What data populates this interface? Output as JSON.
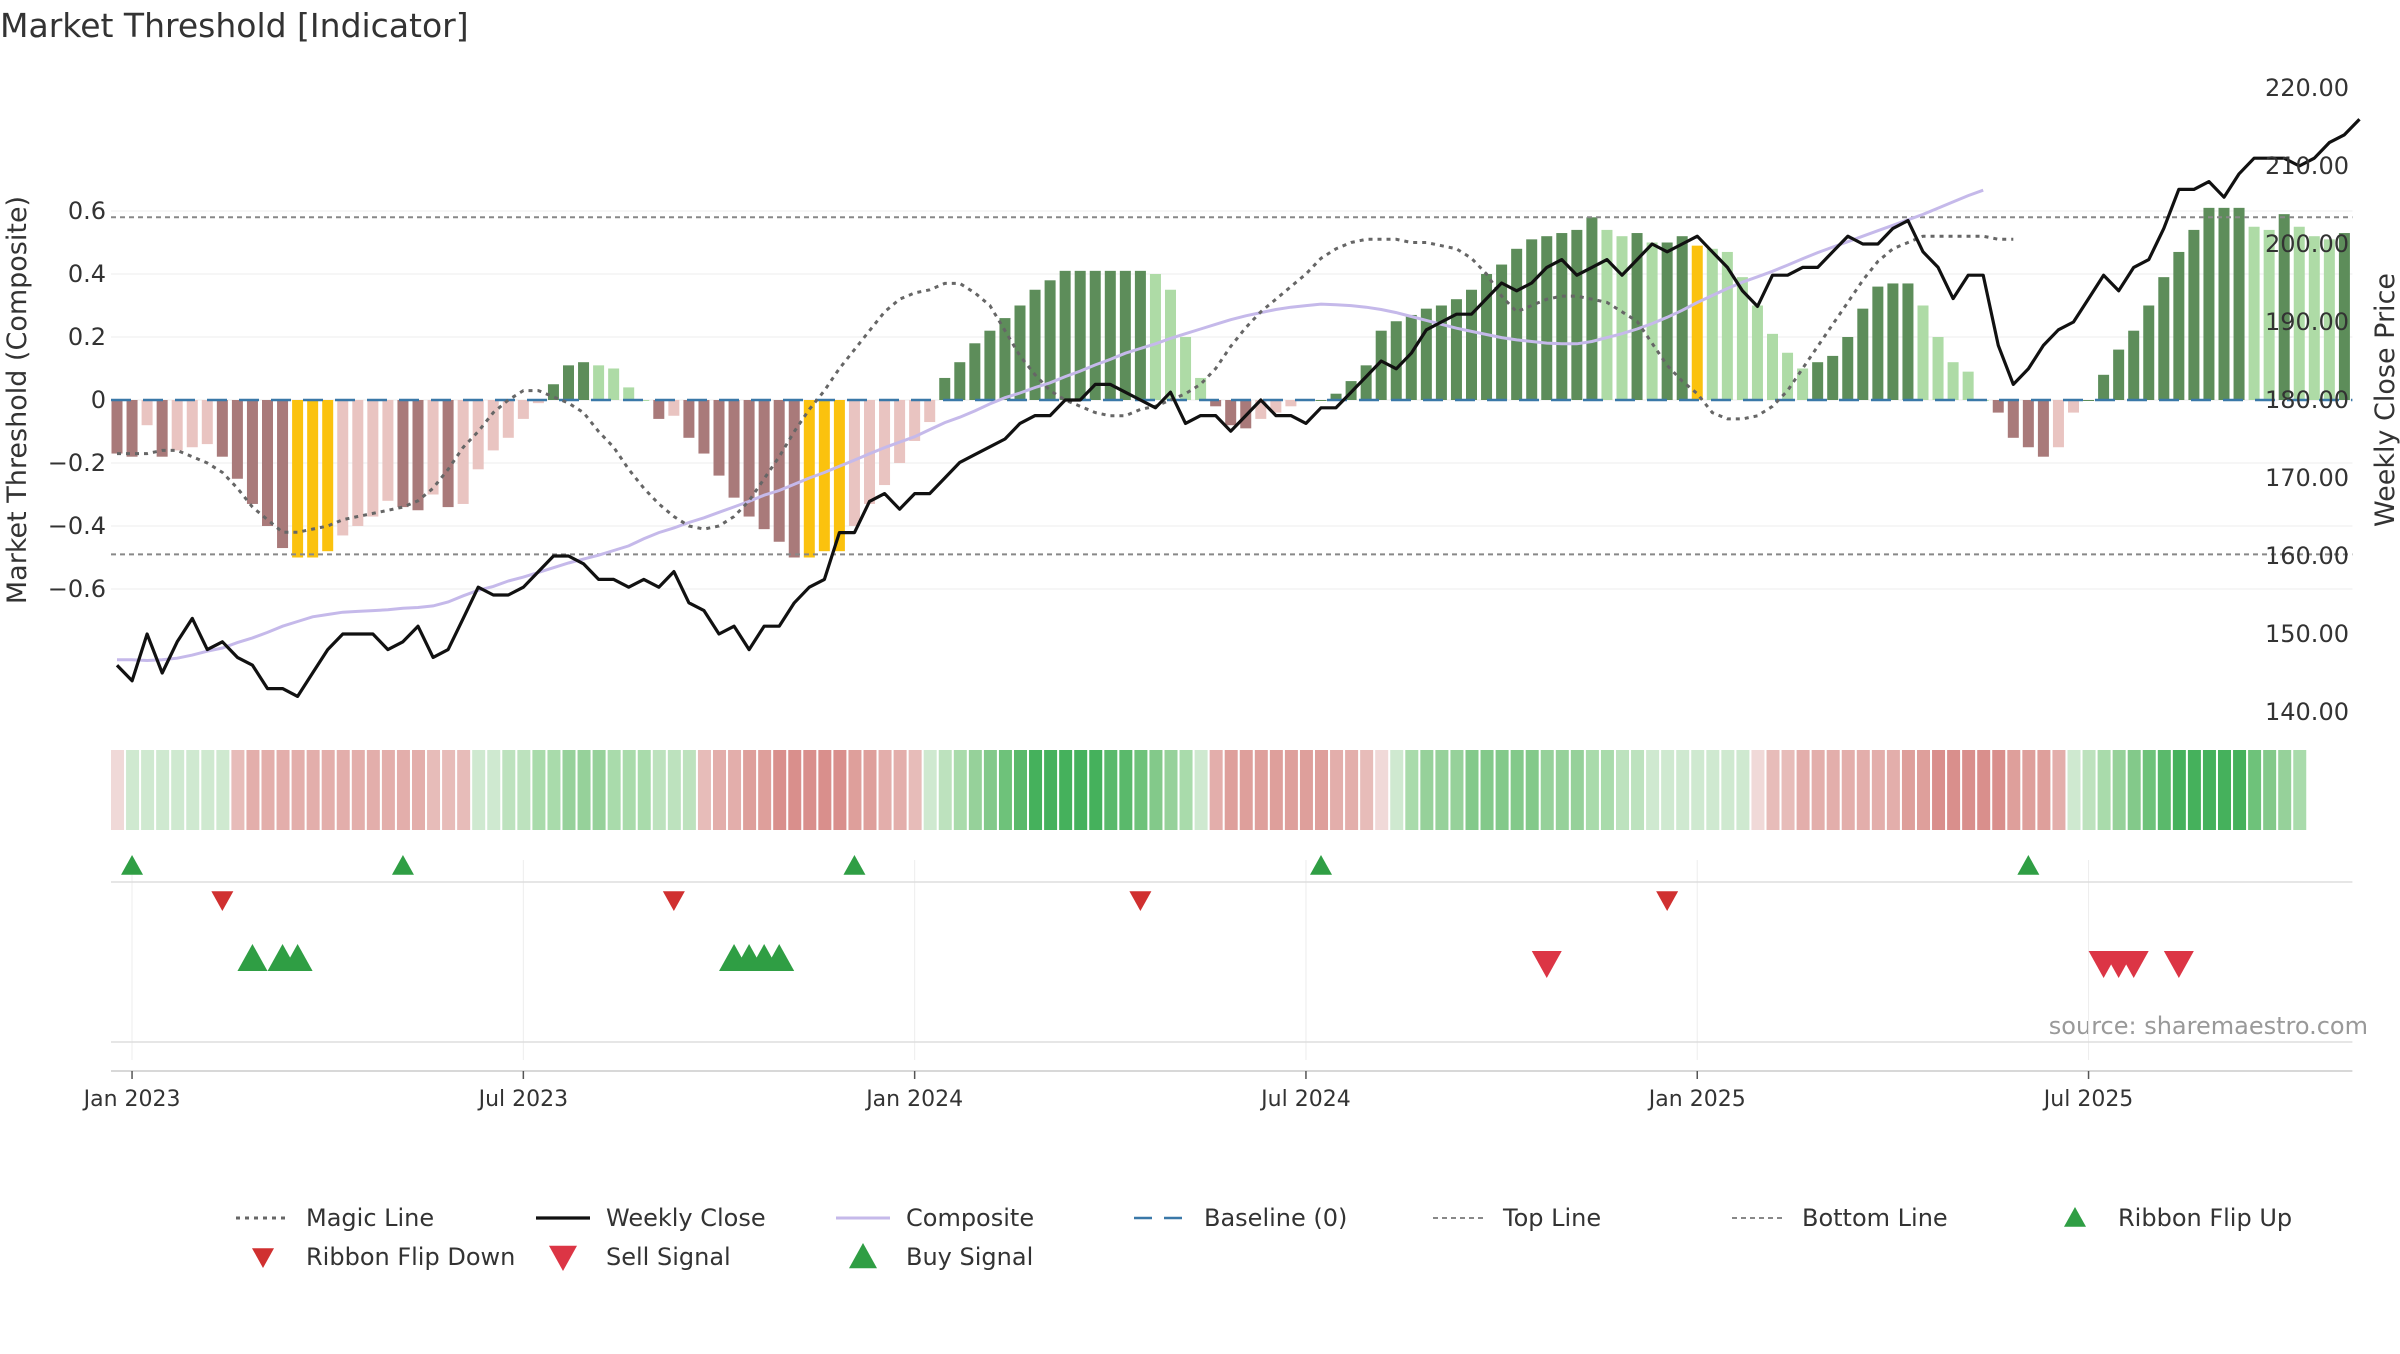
{
  "chart_data": {
    "type": "bar",
    "title": "Market Threshold [Indicator]",
    "ylabel": "Market Threshold (Composite)",
    "y2label": "Weekly Close Price",
    "source": "source: sharemaestro.com",
    "ylim": [
      -0.68,
      0.7
    ],
    "y2lim": [
      135,
      220
    ],
    "yticks": [
      {
        "v": 0.6,
        "label": "0.6"
      },
      {
        "v": 0.4,
        "label": "0.4"
      },
      {
        "v": 0.2,
        "label": "0.2"
      },
      {
        "v": 0,
        "label": "0"
      },
      {
        "v": -0.2,
        "label": "−0.2"
      },
      {
        "v": -0.4,
        "label": "−0.4"
      },
      {
        "v": -0.6,
        "label": "−0.6"
      }
    ],
    "y2ticks": [
      {
        "v": 220,
        "label": "220.00"
      },
      {
        "v": 210,
        "label": "210.00"
      },
      {
        "v": 200,
        "label": "200.00"
      },
      {
        "v": 190,
        "label": "190.00"
      },
      {
        "v": 180,
        "label": "180.00"
      },
      {
        "v": 170,
        "label": "170.00"
      },
      {
        "v": 160,
        "label": "160.00"
      },
      {
        "v": 150,
        "label": "150.00"
      },
      {
        "v": 140,
        "label": "140.00"
      }
    ],
    "xticks": [
      {
        "w": 1,
        "label": "Jan 2023"
      },
      {
        "w": 27,
        "label": "Jul 2023"
      },
      {
        "w": 53,
        "label": "Jan 2024"
      },
      {
        "w": 79,
        "label": "Jul 2024"
      },
      {
        "w": 105,
        "label": "Jan 2025"
      },
      {
        "w": 131,
        "label": "Jul 2025"
      }
    ],
    "top_line": 0.58,
    "bottom_line": -0.49,
    "baseline": 0,
    "composite": [
      -0.17,
      -0.18,
      -0.08,
      -0.18,
      -0.16,
      -0.15,
      -0.14,
      -0.18,
      -0.25,
      -0.33,
      -0.4,
      -0.47,
      -0.5,
      -0.5,
      -0.48,
      -0.43,
      -0.4,
      -0.37,
      -0.32,
      -0.34,
      -0.35,
      -0.3,
      -0.34,
      -0.33,
      -0.22,
      -0.16,
      -0.12,
      -0.06,
      -0.01,
      0.05,
      0.11,
      0.12,
      0.11,
      0.1,
      0.04,
      0.0,
      -0.06,
      -0.05,
      -0.12,
      -0.17,
      -0.24,
      -0.31,
      -0.37,
      -0.41,
      -0.45,
      -0.5,
      -0.5,
      -0.48,
      -0.48,
      -0.4,
      -0.33,
      -0.27,
      -0.2,
      -0.13,
      -0.07,
      0.07,
      0.12,
      0.18,
      0.22,
      0.26,
      0.3,
      0.35,
      0.38,
      0.41,
      0.41,
      0.41,
      0.41,
      0.41,
      0.41,
      0.4,
      0.35,
      0.2,
      0.07,
      -0.02,
      -0.08,
      -0.09,
      -0.06,
      -0.04,
      -0.02,
      0.0,
      0.0,
      0.02,
      0.06,
      0.11,
      0.22,
      0.25,
      0.27,
      0.29,
      0.3,
      0.32,
      0.35,
      0.4,
      0.43,
      0.48,
      0.51,
      0.52,
      0.53,
      0.54,
      0.58,
      0.54,
      0.52,
      0.53,
      0.5,
      0.5,
      0.52,
      0.49,
      0.48,
      0.47,
      0.39,
      0.3,
      0.21,
      0.15,
      0.1,
      0.12,
      0.14,
      0.2,
      0.29,
      0.36,
      0.37,
      0.37,
      0.3,
      0.2,
      0.12,
      0.09,
      0.0,
      -0.04,
      -0.12,
      -0.15,
      -0.18,
      -0.15,
      -0.04,
      0.0,
      0.08,
      0.16,
      0.22,
      0.3,
      0.39,
      0.47,
      0.54,
      0.61,
      0.61,
      0.61,
      0.55,
      0.54,
      0.59,
      0.55,
      0.52,
      0.51,
      0.53
    ],
    "bar_colors": {
      "dark_red": "#a97a7a",
      "light_red": "#e9c4c1",
      "yellow": "#fbc20e",
      "dark_green": "#5d8d5a",
      "light_green": "#aedba6"
    },
    "bar_types": "RRRRRRRRRRRRYYYRRRRRRRRRRRRGGGGGGGRRRRRRRRRRRRYYYRRRRRRGGGGGGGGGGGGGGGGGGGGRRRRRRRRRGGGGGGGGGGGGGGGGGGGGGYGGGGGGGGGGGGGGGGGGGGGGGGGGGGGGGGRRRRRGGGGGGGGGYYYGYGGGGG",
    "weekly_close": [
      146,
      144,
      150,
      145,
      149,
      152,
      148,
      149,
      147,
      146,
      143,
      143,
      142,
      145,
      148,
      150,
      150,
      150,
      148,
      149,
      151,
      147,
      148,
      152,
      156,
      155,
      155,
      156,
      158,
      160,
      160,
      159,
      157,
      157,
      156,
      157,
      156,
      158,
      154,
      153,
      150,
      151,
      148,
      151,
      151,
      154,
      156,
      157,
      163,
      163,
      167,
      168,
      166,
      168,
      168,
      170,
      172,
      173,
      174,
      175,
      177,
      178,
      178,
      180,
      180,
      182,
      182,
      181,
      180,
      179,
      181,
      177,
      178,
      178,
      176,
      178,
      180,
      178,
      178,
      177,
      179,
      179,
      181,
      183,
      185,
      184,
      186,
      189,
      190,
      191,
      191,
      193,
      195,
      194,
      195,
      197,
      198,
      196,
      197,
      198,
      196,
      198,
      200,
      199,
      200,
      201,
      199,
      197,
      194,
      192,
      196,
      196,
      197,
      197,
      199,
      201,
      200,
      200,
      202,
      203,
      199,
      197,
      193,
      196,
      196,
      187,
      182,
      184,
      187,
      189,
      190,
      193,
      196,
      194,
      197,
      198,
      202,
      207,
      207,
      208,
      206,
      209,
      211,
      211,
      211,
      210,
      211,
      213,
      214,
      216
    ],
    "magic_line": [
      -0.17,
      -0.17,
      -0.17,
      -0.16,
      -0.16,
      -0.18,
      -0.2,
      -0.23,
      -0.28,
      -0.34,
      -0.38,
      -0.42,
      -0.42,
      -0.41,
      -0.4,
      -0.38,
      -0.37,
      -0.36,
      -0.35,
      -0.34,
      -0.32,
      -0.28,
      -0.22,
      -0.15,
      -0.1,
      -0.04,
      0.0,
      0.03,
      0.03,
      0.01,
      -0.01,
      -0.04,
      -0.1,
      -0.15,
      -0.22,
      -0.28,
      -0.33,
      -0.37,
      -0.4,
      -0.41,
      -0.4,
      -0.37,
      -0.32,
      -0.25,
      -0.18,
      -0.1,
      -0.03,
      0.03,
      0.1,
      0.16,
      0.22,
      0.28,
      0.32,
      0.34,
      0.35,
      0.37,
      0.37,
      0.34,
      0.3,
      0.22,
      0.14,
      0.08,
      0.03,
      0.0,
      -0.02,
      -0.04,
      -0.05,
      -0.05,
      -0.03,
      -0.02,
      0.0,
      0.02,
      0.05,
      0.1,
      0.17,
      0.23,
      0.28,
      0.32,
      0.36,
      0.4,
      0.45,
      0.48,
      0.5,
      0.51,
      0.51,
      0.51,
      0.5,
      0.5,
      0.49,
      0.48,
      0.45,
      0.4,
      0.33,
      0.28,
      0.3,
      0.32,
      0.33,
      0.33,
      0.32,
      0.31,
      0.28,
      0.25,
      0.18,
      0.11,
      0.06,
      0.02,
      -0.04,
      -0.06,
      -0.06,
      -0.05,
      -0.02,
      0.03,
      0.1,
      0.17,
      0.24,
      0.31,
      0.38,
      0.44,
      0.48,
      0.5,
      0.52,
      0.52,
      0.52,
      0.52,
      0.52,
      0.51,
      0.51
    ],
    "composite_line": [
      146.7,
      146.7,
      146.6,
      146.7,
      146.9,
      147.3,
      147.8,
      148.2,
      148.9,
      149.5,
      150.2,
      151.0,
      151.6,
      152.2,
      152.5,
      152.8,
      152.9,
      153.0,
      153.1,
      153.3,
      153.4,
      153.6,
      154.1,
      154.9,
      155.6,
      156.1,
      156.8,
      157.3,
      157.9,
      158.5,
      159.1,
      159.6,
      160.1,
      160.7,
      161.3,
      162.2,
      163.0,
      163.6,
      164.3,
      164.9,
      165.6,
      166.3,
      167.0,
      167.8,
      168.4,
      169.2,
      170.0,
      170.7,
      171.5,
      172.3,
      173.1,
      173.9,
      174.6,
      175.3,
      176.2,
      177.1,
      177.8,
      178.6,
      179.5,
      180.3,
      180.9,
      181.6,
      182.2,
      183.0,
      183.7,
      184.5,
      185.2,
      186.0,
      186.6,
      187.2,
      187.9,
      188.5,
      189.1,
      189.7,
      190.3,
      190.8,
      191.2,
      191.6,
      191.9,
      192.1,
      192.3,
      192.2,
      192.1,
      191.9,
      191.6,
      191.2,
      190.7,
      190.2,
      189.7,
      189.2,
      188.8,
      188.4,
      188.0,
      187.7,
      187.5,
      187.3,
      187.2,
      187.2,
      187.5,
      188.0,
      188.5,
      189.1,
      189.8,
      190.6,
      191.5,
      192.5,
      193.4,
      194.3,
      195.1,
      195.8,
      196.5,
      197.3,
      198.1,
      198.9,
      199.6,
      200.3,
      201.0,
      201.7,
      202.4,
      203.1,
      203.8,
      204.6,
      205.4,
      206.2,
      206.9
    ],
    "ribbon_colors": [
      "#f0d9d8",
      "#cfe9d0",
      "#cfe9d0",
      "#cfe9d0",
      "#cfe9d0",
      "#cfe9d0",
      "#cfe9d0",
      "#cfe9d0",
      "#e7bcb9",
      "#e3aeab",
      "#e3aeab",
      "#e3aeab",
      "#e3aeab",
      "#e3aeab",
      "#e3aeab",
      "#e3aeab",
      "#e3aeab",
      "#e3aeab",
      "#e3aeab",
      "#e3aeab",
      "#e3aeab",
      "#e7bcb9",
      "#e7bcb9",
      "#e7bcb9",
      "#cfe9d0",
      "#cfe9d0",
      "#bde2be",
      "#bde2be",
      "#a9dbab",
      "#a9dbab",
      "#96d19a",
      "#96d19a",
      "#96d19a",
      "#a9dbab",
      "#a9dbab",
      "#a9dbab",
      "#bde2be",
      "#bde2be",
      "#bde2be",
      "#e7bcb9",
      "#e3aeab",
      "#e3aeab",
      "#de9f9b",
      "#de9f9b",
      "#d98f8c",
      "#d98f8c",
      "#d98f8c",
      "#d98f8c",
      "#d98f8c",
      "#de9f9b",
      "#de9f9b",
      "#e3aeab",
      "#e3aeab",
      "#e7bcb9",
      "#cfe9d0",
      "#bde2be",
      "#a9dbab",
      "#96d19a",
      "#83c98a",
      "#6ec27a",
      "#5ab96b",
      "#45b15c",
      "#45b15c",
      "#45b15c",
      "#45b15c",
      "#45b15c",
      "#5ab96b",
      "#5ab96b",
      "#6ec27a",
      "#83c98a",
      "#96d19a",
      "#a9dbab",
      "#cfe9d0",
      "#e3aeab",
      "#de9f9b",
      "#de9f9b",
      "#de9f9b",
      "#de9f9b",
      "#de9f9b",
      "#de9f9b",
      "#de9f9b",
      "#e3aeab",
      "#e3aeab",
      "#e7bcb9",
      "#f0d9d8",
      "#cfe9d0",
      "#a9dbab",
      "#96d19a",
      "#96d19a",
      "#96d19a",
      "#83c98a",
      "#83c98a",
      "#83c98a",
      "#83c98a",
      "#83c98a",
      "#96d19a",
      "#96d19a",
      "#96d19a",
      "#a9dbab",
      "#a9dbab",
      "#bde2be",
      "#bde2be",
      "#cfe9d0",
      "#cfe9d0",
      "#cfe9d0",
      "#cfe9d0",
      "#cfe9d0",
      "#cfe9d0",
      "#cfe9d0",
      "#f0d9d8",
      "#e7bcb9",
      "#e7bcb9",
      "#e3aeab",
      "#e3aeab",
      "#e3aeab",
      "#e3aeab",
      "#e3aeab",
      "#e3aeab",
      "#e3aeab",
      "#de9f9b",
      "#de9f9b",
      "#d98f8c",
      "#d98f8c",
      "#d98f8c",
      "#d98f8c",
      "#d98f8c",
      "#de9f9b",
      "#de9f9b",
      "#de9f9b",
      "#e3aeab",
      "#cfe9d0",
      "#bde2be",
      "#a9dbab",
      "#96d19a",
      "#83c98a",
      "#6ec27a",
      "#5ab96b",
      "#45b15c",
      "#45b15c",
      "#45b15c",
      "#45b15c",
      "#45b15c",
      "#6ec27a",
      "#83c98a",
      "#96d19a",
      "#a9dbab"
    ],
    "ribbon_flip_up": [
      1,
      19,
      49,
      80,
      127
    ],
    "ribbon_flip_down": [
      7,
      37,
      68,
      103
    ],
    "buy_signals": [
      9,
      11,
      12,
      41,
      42,
      43,
      44
    ],
    "sell_signals": [
      95,
      132,
      133,
      134,
      137
    ],
    "legend": [
      {
        "key": "magic",
        "label": "Magic Line"
      },
      {
        "key": "close",
        "label": "Weekly Close"
      },
      {
        "key": "composite",
        "label": "Composite"
      },
      {
        "key": "baseline",
        "label": "Baseline (0)"
      },
      {
        "key": "top",
        "label": "Top Line"
      },
      {
        "key": "bottom",
        "label": "Bottom Line"
      },
      {
        "key": "flipup",
        "label": "Ribbon Flip Up"
      },
      {
        "key": "flipdown",
        "label": "Ribbon Flip Down"
      },
      {
        "key": "sell",
        "label": "Sell Signal"
      },
      {
        "key": "buy",
        "label": "Buy Signal"
      }
    ],
    "colors": {
      "magic_line": "#666666",
      "weekly_close": "#111111",
      "composite_line": "#c5b9ea",
      "baseline": "#3a78a8",
      "top_bottom": "#888888",
      "flip_up": "#2f9e44",
      "flip_down": "#d03030",
      "buy": "#2f9e44",
      "sell": "#dc3545"
    }
  }
}
